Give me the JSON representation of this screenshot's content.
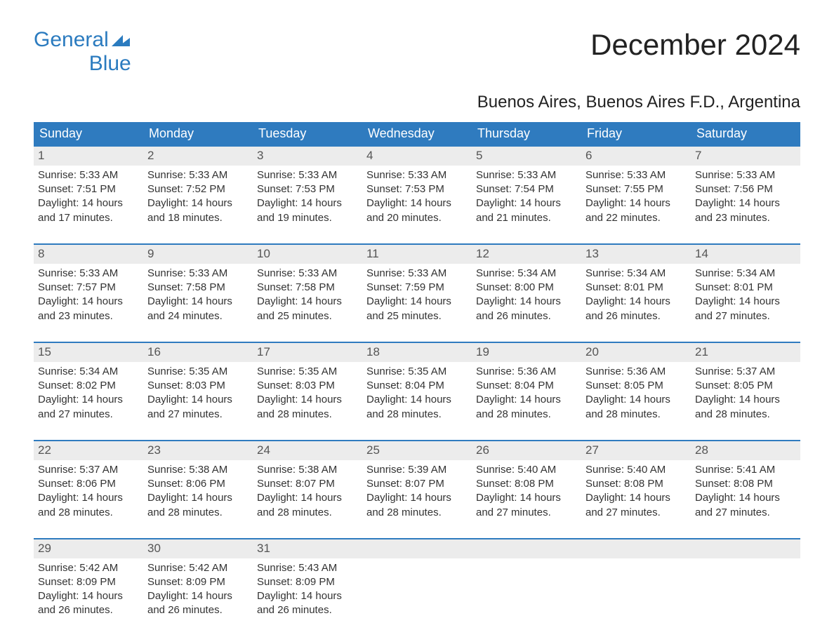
{
  "logo": {
    "line1": "General",
    "line2": "Blue"
  },
  "header": {
    "title": "December 2024",
    "subtitle": "Buenos Aires, Buenos Aires F.D., Argentina"
  },
  "colors": {
    "header_bg": "#2f7bbf",
    "header_fg": "#ffffff",
    "daynum_bg": "#ececec",
    "week_border": "#2f7bbf",
    "text": "#333333",
    "background": "#ffffff"
  },
  "day_headers": [
    "Sunday",
    "Monday",
    "Tuesday",
    "Wednesday",
    "Thursday",
    "Friday",
    "Saturday"
  ],
  "labels": {
    "sunrise": "Sunrise:",
    "sunset": "Sunset:",
    "daylight": "Daylight:"
  },
  "weeks": [
    [
      {
        "n": "1",
        "sunrise": "5:33 AM",
        "sunset": "7:51 PM",
        "daylight": "14 hours and 17 minutes."
      },
      {
        "n": "2",
        "sunrise": "5:33 AM",
        "sunset": "7:52 PM",
        "daylight": "14 hours and 18 minutes."
      },
      {
        "n": "3",
        "sunrise": "5:33 AM",
        "sunset": "7:53 PM",
        "daylight": "14 hours and 19 minutes."
      },
      {
        "n": "4",
        "sunrise": "5:33 AM",
        "sunset": "7:53 PM",
        "daylight": "14 hours and 20 minutes."
      },
      {
        "n": "5",
        "sunrise": "5:33 AM",
        "sunset": "7:54 PM",
        "daylight": "14 hours and 21 minutes."
      },
      {
        "n": "6",
        "sunrise": "5:33 AM",
        "sunset": "7:55 PM",
        "daylight": "14 hours and 22 minutes."
      },
      {
        "n": "7",
        "sunrise": "5:33 AM",
        "sunset": "7:56 PM",
        "daylight": "14 hours and 23 minutes."
      }
    ],
    [
      {
        "n": "8",
        "sunrise": "5:33 AM",
        "sunset": "7:57 PM",
        "daylight": "14 hours and 23 minutes."
      },
      {
        "n": "9",
        "sunrise": "5:33 AM",
        "sunset": "7:58 PM",
        "daylight": "14 hours and 24 minutes."
      },
      {
        "n": "10",
        "sunrise": "5:33 AM",
        "sunset": "7:58 PM",
        "daylight": "14 hours and 25 minutes."
      },
      {
        "n": "11",
        "sunrise": "5:33 AM",
        "sunset": "7:59 PM",
        "daylight": "14 hours and 25 minutes."
      },
      {
        "n": "12",
        "sunrise": "5:34 AM",
        "sunset": "8:00 PM",
        "daylight": "14 hours and 26 minutes."
      },
      {
        "n": "13",
        "sunrise": "5:34 AM",
        "sunset": "8:01 PM",
        "daylight": "14 hours and 26 minutes."
      },
      {
        "n": "14",
        "sunrise": "5:34 AM",
        "sunset": "8:01 PM",
        "daylight": "14 hours and 27 minutes."
      }
    ],
    [
      {
        "n": "15",
        "sunrise": "5:34 AM",
        "sunset": "8:02 PM",
        "daylight": "14 hours and 27 minutes."
      },
      {
        "n": "16",
        "sunrise": "5:35 AM",
        "sunset": "8:03 PM",
        "daylight": "14 hours and 27 minutes."
      },
      {
        "n": "17",
        "sunrise": "5:35 AM",
        "sunset": "8:03 PM",
        "daylight": "14 hours and 28 minutes."
      },
      {
        "n": "18",
        "sunrise": "5:35 AM",
        "sunset": "8:04 PM",
        "daylight": "14 hours and 28 minutes."
      },
      {
        "n": "19",
        "sunrise": "5:36 AM",
        "sunset": "8:04 PM",
        "daylight": "14 hours and 28 minutes."
      },
      {
        "n": "20",
        "sunrise": "5:36 AM",
        "sunset": "8:05 PM",
        "daylight": "14 hours and 28 minutes."
      },
      {
        "n": "21",
        "sunrise": "5:37 AM",
        "sunset": "8:05 PM",
        "daylight": "14 hours and 28 minutes."
      }
    ],
    [
      {
        "n": "22",
        "sunrise": "5:37 AM",
        "sunset": "8:06 PM",
        "daylight": "14 hours and 28 minutes."
      },
      {
        "n": "23",
        "sunrise": "5:38 AM",
        "sunset": "8:06 PM",
        "daylight": "14 hours and 28 minutes."
      },
      {
        "n": "24",
        "sunrise": "5:38 AM",
        "sunset": "8:07 PM",
        "daylight": "14 hours and 28 minutes."
      },
      {
        "n": "25",
        "sunrise": "5:39 AM",
        "sunset": "8:07 PM",
        "daylight": "14 hours and 28 minutes."
      },
      {
        "n": "26",
        "sunrise": "5:40 AM",
        "sunset": "8:08 PM",
        "daylight": "14 hours and 27 minutes."
      },
      {
        "n": "27",
        "sunrise": "5:40 AM",
        "sunset": "8:08 PM",
        "daylight": "14 hours and 27 minutes."
      },
      {
        "n": "28",
        "sunrise": "5:41 AM",
        "sunset": "8:08 PM",
        "daylight": "14 hours and 27 minutes."
      }
    ],
    [
      {
        "n": "29",
        "sunrise": "5:42 AM",
        "sunset": "8:09 PM",
        "daylight": "14 hours and 26 minutes."
      },
      {
        "n": "30",
        "sunrise": "5:42 AM",
        "sunset": "8:09 PM",
        "daylight": "14 hours and 26 minutes."
      },
      {
        "n": "31",
        "sunrise": "5:43 AM",
        "sunset": "8:09 PM",
        "daylight": "14 hours and 26 minutes."
      },
      null,
      null,
      null,
      null
    ]
  ]
}
